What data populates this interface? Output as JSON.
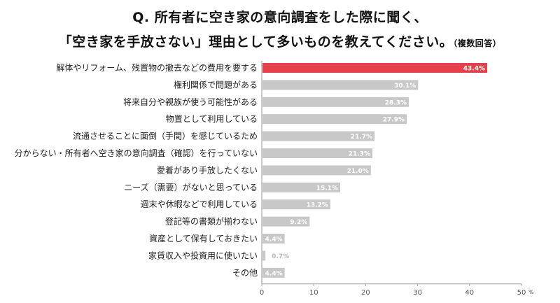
{
  "title": {
    "line1": "Q. 所有者に空き家の意向調査をした際に聞く、",
    "line2": "「空き家を手放さない」理由として多いものを教えてください。",
    "note": "（複数回答）"
  },
  "chart_data": {
    "type": "bar",
    "orientation": "horizontal",
    "categories": [
      "解体やリフォーム、残置物の撤去などの費用を要する",
      "権利関係で問題がある",
      "将来自分や親族が使う可能性がある",
      "物置として利用している",
      "流通させることに面倒（手間）を感じているため",
      "分からない・所有者へ空き家の意向調査（確認）を行っていない",
      "愛着があり手放したくない",
      "ニーズ（需要）がないと思っている",
      "週末や休暇などで利用している",
      "登記等の書類が揃わない",
      "資産として保有しておきたい",
      "家賃収入や投資用に使いたい",
      "その他"
    ],
    "values": [
      43.4,
      30.1,
      28.3,
      27.9,
      21.7,
      21.3,
      21.0,
      15.1,
      13.2,
      9.2,
      4.4,
      0.7,
      4.4
    ],
    "value_suffix": "%",
    "highlight_index": 0,
    "colors": {
      "highlight": "#e8404a",
      "default": "#c8c8c8",
      "axis": "#999999"
    },
    "xlim": [
      0,
      50
    ],
    "xticks": [
      "0",
      "10",
      "20",
      "30",
      "40",
      "50"
    ],
    "xunit": "%",
    "grid": false
  }
}
